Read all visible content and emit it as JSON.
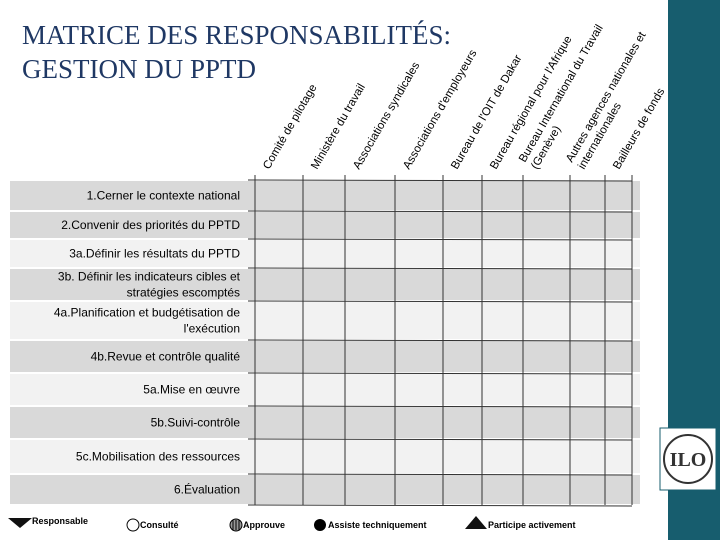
{
  "title": [
    "MATRICE DES RESPONSABILITÉS:",
    "GESTION DU PPTD"
  ],
  "columns": [
    [
      "Comité de pilotage"
    ],
    [
      "Ministère du travail"
    ],
    [
      "Associations syndicales"
    ],
    [
      "Associations d'employeurs"
    ],
    [
      "Bureau  de l'OIT de Dakar"
    ],
    [
      "Bureau régional pour l'Afrique"
    ],
    [
      "Bureau International du Travail",
      "(Genève)"
    ],
    [
      "Autres agences nationales et",
      "internationales"
    ],
    [
      "Bailleurs de fonds"
    ]
  ],
  "rows": [
    [
      "1.Cerner le contexte national"
    ],
    [
      "2.Convenir des priorités du PPTD"
    ],
    [
      "3a.Définir les résultats du PPTD"
    ],
    [
      "3b. Définir les indicateurs cibles et",
      "stratégies escomptés"
    ],
    [
      "4a.Planification et budgétisation de",
      "l'exécution"
    ],
    [
      "4b.Revue et contrôle qualité"
    ],
    [
      "5a.Mise en œuvre"
    ],
    [
      "5b.Suivi-contrôle"
    ],
    [
      "5c.Mobilisation des ressources"
    ],
    [
      "6.Évaluation"
    ]
  ],
  "legend": [
    "Responsable",
    "Consulté",
    "Approuve",
    "Assiste techniquement",
    "Participe activement"
  ],
  "logo": "ILO"
}
